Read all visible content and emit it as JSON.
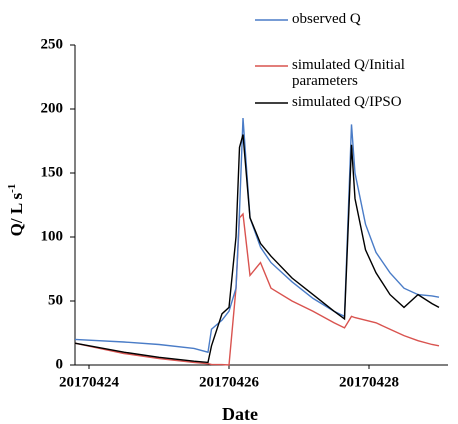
{
  "chart_data": {
    "type": "line",
    "x_label": "Date",
    "y_label": "Q/ L s",
    "y_label_superscript": "-1",
    "x": [
      -0.2,
      0.5,
      1.0,
      1.5,
      1.7,
      1.75,
      1.9,
      2.0,
      2.1,
      2.15,
      2.2,
      2.3,
      2.45,
      2.6,
      2.9,
      3.2,
      3.5,
      3.65,
      3.75,
      3.8,
      3.95,
      4.1,
      4.3,
      4.5,
      4.7,
      4.9,
      5.0
    ],
    "series": [
      {
        "name": "observed Q",
        "color": "#4a7cc7",
        "values": [
          20,
          18,
          16,
          13,
          10,
          28,
          35,
          42,
          60,
          120,
          193,
          115,
          92,
          80,
          65,
          52,
          42,
          38,
          188,
          150,
          110,
          88,
          72,
          60,
          55,
          54,
          53
        ]
      },
      {
        "name": "simulated Q/Initial parameters",
        "color": "#d9534f",
        "values": [
          17,
          9,
          5,
          2,
          1,
          0.5,
          0.3,
          0,
          60,
          115,
          118,
          70,
          80,
          60,
          50,
          42,
          33,
          29,
          38,
          37,
          35,
          33,
          28,
          23,
          19,
          16,
          15
        ]
      },
      {
        "name": "simulated Q/IPSO",
        "color": "#000000",
        "values": [
          17,
          10,
          6,
          3,
          2,
          15,
          40,
          45,
          100,
          170,
          180,
          115,
          95,
          85,
          68,
          55,
          42,
          36,
          172,
          130,
          90,
          72,
          55,
          45,
          55,
          48,
          45
        ]
      }
    ],
    "xlim": [
      -0.2,
      5.1
    ],
    "xticks": [
      {
        "value": 0,
        "label": "20170424"
      },
      {
        "value": 2,
        "label": "20170426"
      },
      {
        "value": 4,
        "label": "20170428"
      }
    ],
    "ylim": [
      0,
      250
    ],
    "yticks": [
      0,
      50,
      100,
      150,
      200,
      250
    ]
  }
}
